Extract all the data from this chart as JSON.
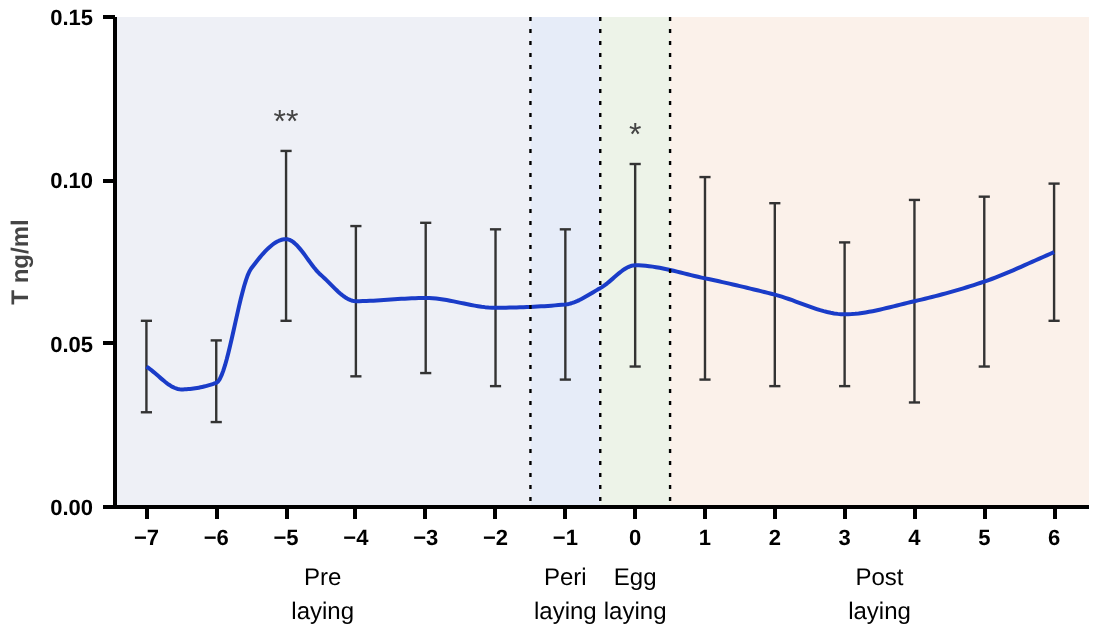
{
  "chart_data": {
    "type": "line",
    "ylabel": "T ng/ml",
    "x": [
      -7,
      -6.5,
      -6,
      -5.5,
      -5,
      -4.5,
      -4,
      -3,
      -2,
      -1,
      -0.5,
      0,
      1,
      2,
      3,
      4,
      5,
      6
    ],
    "series": [
      {
        "color": "#1a3cc8",
        "values": [
          0.043,
          0.036,
          0.038,
          0.073,
          0.082,
          0.071,
          0.063,
          0.064,
          0.061,
          0.062,
          0.067,
          0.074,
          0.07,
          0.065,
          0.059,
          0.063,
          0.069,
          0.078
        ],
        "errors": [
          [
            0.029,
            0.057
          ],
          null,
          [
            0.026,
            0.051
          ],
          null,
          [
            0.057,
            0.109
          ],
          null,
          [
            0.04,
            0.086
          ],
          [
            0.041,
            0.087
          ],
          [
            0.037,
            0.085
          ],
          [
            0.039,
            0.085
          ],
          null,
          [
            0.043,
            0.105
          ],
          [
            0.039,
            0.101
          ],
          [
            0.037,
            0.093
          ],
          [
            0.037,
            0.081
          ],
          [
            0.032,
            0.094
          ],
          [
            0.043,
            0.095
          ],
          [
            0.057,
            0.099
          ]
        ]
      }
    ],
    "xlim": [
      -7.45,
      6.5
    ],
    "xticks": [
      -7,
      -6,
      -5,
      -4,
      -3,
      -2,
      -1,
      0,
      1,
      2,
      3,
      4,
      5,
      6
    ],
    "ylim": [
      0,
      0.15
    ],
    "yticks": [
      {
        "value": 0,
        "label": "0.00"
      },
      {
        "value": 0.05,
        "label": "0.05"
      },
      {
        "value": 0.1,
        "label": "0.10"
      },
      {
        "value": 0.15,
        "label": "0.15"
      }
    ],
    "bands": [
      {
        "axis": "x",
        "from": -7.45,
        "to": -1.5,
        "label": "Pre\nlaying",
        "color": "#eef0f6"
      },
      {
        "axis": "x",
        "from": -1.5,
        "to": -0.5,
        "label": "Peri\nlaying",
        "color": "#e6ecf8"
      },
      {
        "axis": "x",
        "from": -0.5,
        "to": 0.5,
        "label": "Egg\nlaying",
        "color": "#edf3e8"
      },
      {
        "axis": "x",
        "from": 0.5,
        "to": 6.5,
        "label": "Post\nlaying",
        "color": "#fbf1ea"
      }
    ],
    "ref_lines": [
      {
        "axis": "x",
        "value": -1.5,
        "color": "#000000",
        "line_style": "dotted"
      },
      {
        "axis": "x",
        "value": -0.5,
        "color": "#000000",
        "line_style": "dotted"
      },
      {
        "axis": "x",
        "value": 0.5,
        "color": "#000000",
        "line_style": "dotted"
      }
    ],
    "annotations": [
      "**",
      "*"
    ],
    "grid": false,
    "marker": "none",
    "line_style": "solid"
  }
}
